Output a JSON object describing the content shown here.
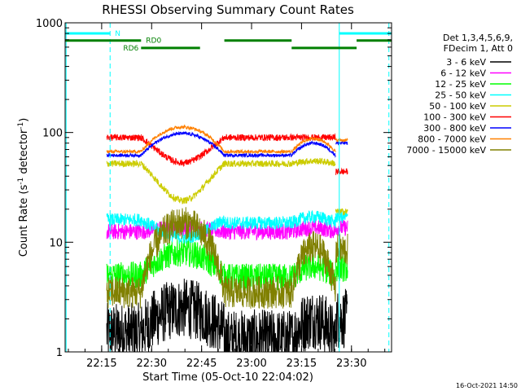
{
  "chart_data": {
    "type": "line",
    "title": "RHESSI Observing Summary Count Rates",
    "xlabel": "Start Time (05-Oct-10 22:04:02)",
    "ylabel_main": "Count Rate (s",
    "ylabel_exp1": "-1",
    "ylabel_mid": " detector",
    "ylabel_exp2": "-1",
    "ylabel_end": ")",
    "y_scale": "log",
    "ylim": [
      1,
      1000
    ],
    "xlim_minutes": [
      0,
      98
    ],
    "x_ticks": [
      {
        "label": "22:15",
        "min": 10.97
      },
      {
        "label": "22:30",
        "min": 25.97
      },
      {
        "label": "22:45",
        "min": 40.97
      },
      {
        "label": "23:00",
        "min": 55.97
      },
      {
        "label": "23:15",
        "min": 70.97
      },
      {
        "label": "23:30",
        "min": 85.97
      }
    ],
    "y_ticks": [
      {
        "label": "1",
        "value": 1
      },
      {
        "label": "10",
        "value": 10
      },
      {
        "label": "100",
        "value": 100
      },
      {
        "label": "1000",
        "value": 1000
      }
    ],
    "legend_header": [
      "Det 1,3,4,5,6,9,",
      "FDecim 1, Att 0"
    ],
    "legend_placement": "right, outside plot",
    "timestamp": "16-Oct-2021 14:50",
    "segments": [
      [
        12.5,
        22.8
      ],
      [
        22.8,
        47.8
      ],
      [
        47.8,
        68.0
      ],
      [
        68.0,
        81.2
      ],
      [
        81.2,
        84.8
      ]
    ],
    "series": [
      {
        "name": "3 - 6 keV",
        "color": "#000000",
        "levels": [
          1.5,
          2.5,
          1.3,
          2.0,
          2.0
        ],
        "noise": 0.55
      },
      {
        "name": "6 - 12 keV",
        "color": "#ff00ff",
        "levels": [
          12.5,
          13.5,
          12.5,
          13.5,
          13.5
        ],
        "noise": 0.15
      },
      {
        "name": "12 - 25 keV",
        "color": "#00ff00",
        "levels": [
          5.0,
          8.0,
          4.8,
          6.0,
          5.8
        ],
        "noise": 0.25
      },
      {
        "name": "25 - 50 keV",
        "color": "#00ffff",
        "levels": [
          16,
          11,
          15,
          17,
          17
        ],
        "noise": 0.12
      },
      {
        "name": "50 - 100 keV",
        "color": "#cccc00",
        "levels": [
          52,
          24,
          52,
          55,
          19
        ],
        "noise": 0.06
      },
      {
        "name": "100 - 300 keV",
        "color": "#ff0000",
        "levels": [
          90,
          53,
          90,
          90,
          44
        ],
        "noise": 0.06
      },
      {
        "name": "300 - 800 keV",
        "color": "#0000ff",
        "levels": [
          62,
          98,
          62,
          80,
          80
        ],
        "noise": 0.03
      },
      {
        "name": "800 - 7000 keV",
        "color": "#ff8000",
        "levels": [
          67,
          112,
          67,
          88,
          85
        ],
        "noise": 0.03
      },
      {
        "name": "7000 - 15000 keV",
        "color": "#808000",
        "levels": [
          3.5,
          15,
          3.5,
          9.0,
          8.5
        ],
        "noise": 0.3
      }
    ],
    "shapes": [
      "flat",
      "hump",
      "flat",
      "hump",
      "flat"
    ],
    "flags": [
      {
        "label": "N",
        "color": "#00ffff",
        "value": 800,
        "intervals": [
          [
            0,
            13.5
          ],
          [
            82.3,
            98
          ]
        ]
      },
      {
        "label": "RD0",
        "color": "#008000",
        "value": 690,
        "intervals": [
          [
            0,
            22.8
          ],
          [
            47.8,
            68.0
          ],
          [
            87.5,
            98
          ]
        ]
      },
      {
        "label": "RD6",
        "color": "#008000",
        "value": 590,
        "intervals": [
          [
            22.8,
            40.5
          ],
          [
            68.0,
            87.5
          ]
        ]
      }
    ],
    "vlines": [
      {
        "min": 0.3,
        "style": "solid",
        "color": "#00ffff"
      },
      {
        "min": 13.5,
        "style": "dashed",
        "color": "#00ffff"
      },
      {
        "min": 82.3,
        "style": "solid",
        "color": "#00ffff"
      },
      {
        "min": 97.2,
        "style": "dashed",
        "color": "#00ffff"
      }
    ]
  }
}
